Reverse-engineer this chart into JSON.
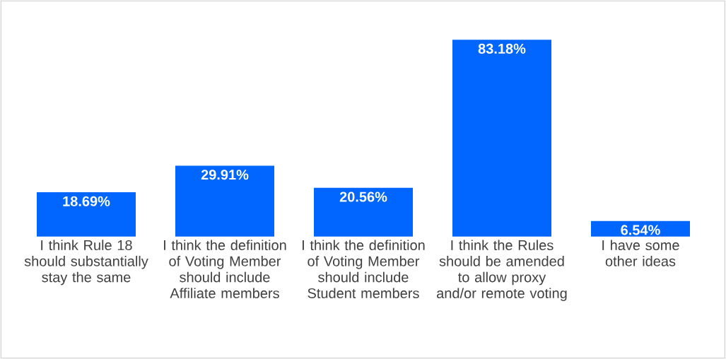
{
  "chart_data": {
    "type": "bar",
    "categories": [
      "I think Rule 18 should substantially stay the same",
      "I think the definition of Voting Member should include Affiliate members",
      "I think the definition of Voting Member should include Student members",
      "I think the Rules should be amended to allow proxy and/or remote voting",
      "I have some other ideas"
    ],
    "values": [
      18.69,
      29.91,
      20.56,
      83.18,
      6.54
    ],
    "value_labels": [
      "18.69%",
      "29.91%",
      "20.56%",
      "83.18%",
      "6.54%"
    ],
    "color": "#0066ff"
  }
}
